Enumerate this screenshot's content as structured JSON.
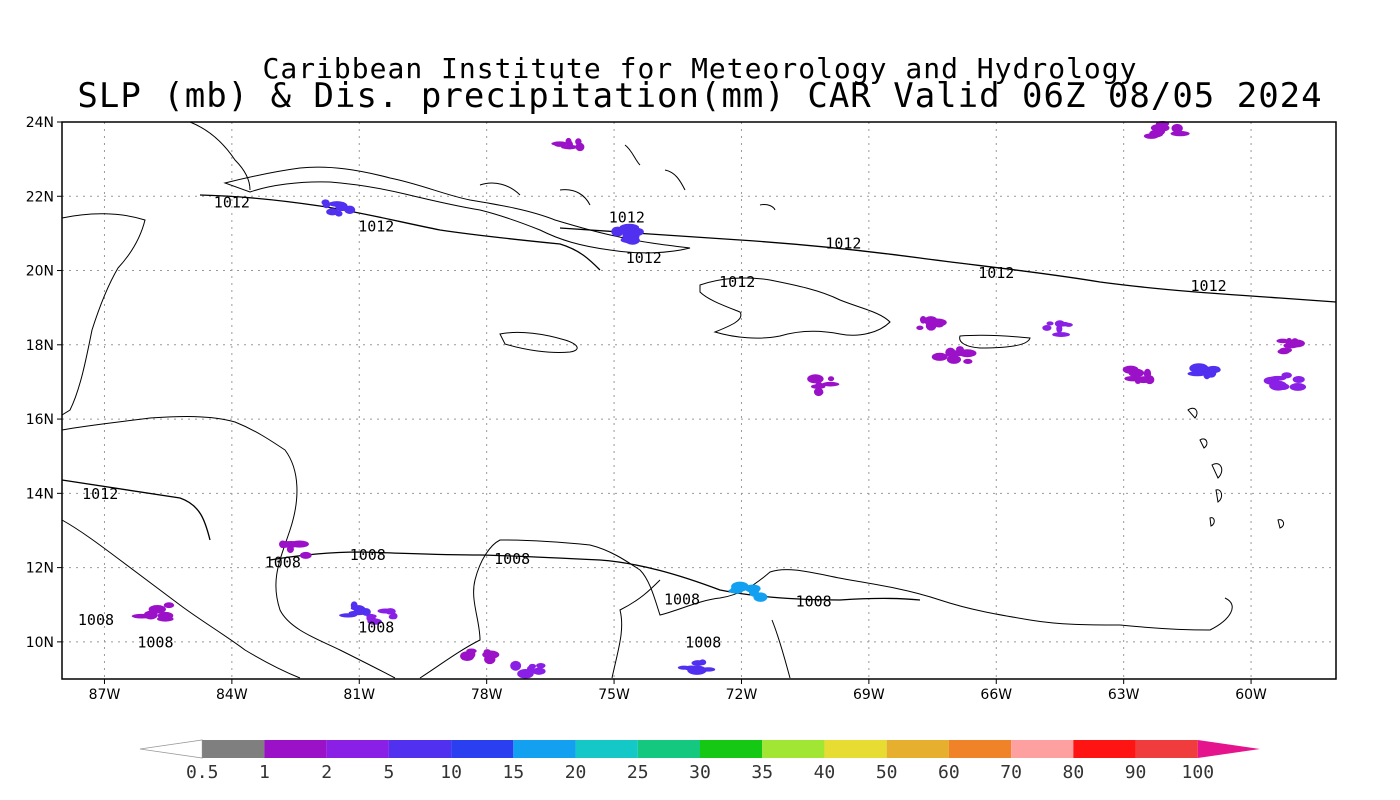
{
  "title": {
    "line1": "Caribbean Institute for Meteorology and Hydrology",
    "line2": "SLP (mb) & Dis. precipitation(mm) CAR Valid 06Z 08/05 2024"
  },
  "axes": {
    "lat_labels": [
      "24N",
      "22N",
      "20N",
      "18N",
      "16N",
      "14N",
      "12N",
      "10N"
    ],
    "lat_values": [
      24,
      22,
      20,
      18,
      16,
      14,
      12,
      10
    ],
    "lon_labels": [
      "87W",
      "84W",
      "81W",
      "78W",
      "75W",
      "72W",
      "69W",
      "66W",
      "63W",
      "60W"
    ],
    "lon_values": [
      -87,
      -84,
      -81,
      -78,
      -75,
      -72,
      -69,
      -66,
      -63,
      -60
    ],
    "lon_range": [
      -88.0,
      -58.0
    ],
    "lat_range": [
      9.0,
      24.0
    ],
    "grid": "dotted"
  },
  "isobars": [
    {
      "label": "1012",
      "lon": -84.0,
      "lat": 21.7
    },
    {
      "label": "1012",
      "lon": -80.6,
      "lat": 21.05
    },
    {
      "label": "1012",
      "lon": -74.7,
      "lat": 21.3
    },
    {
      "label": "1012",
      "lon": -74.3,
      "lat": 20.2
    },
    {
      "label": "1012",
      "lon": -72.1,
      "lat": 19.55
    },
    {
      "label": "1012",
      "lon": -69.6,
      "lat": 20.6
    },
    {
      "label": "1012",
      "lon": -66.0,
      "lat": 19.8
    },
    {
      "label": "1012",
      "lon": -61.0,
      "lat": 19.45
    },
    {
      "label": "1012",
      "lon": -87.1,
      "lat": 13.85
    },
    {
      "label": "1008",
      "lon": -82.8,
      "lat": 12.0
    },
    {
      "label": "1008",
      "lon": -80.8,
      "lat": 12.2
    },
    {
      "label": "1008",
      "lon": -77.4,
      "lat": 12.1
    },
    {
      "label": "1008",
      "lon": -73.4,
      "lat": 11.0
    },
    {
      "label": "1008",
      "lon": -70.3,
      "lat": 10.95
    },
    {
      "label": "1008",
      "lon": -87.2,
      "lat": 10.45
    },
    {
      "label": "1008",
      "lon": -85.8,
      "lat": 9.85
    },
    {
      "label": "1008",
      "lon": -72.9,
      "lat": 9.85
    },
    {
      "label": "1008",
      "lon": -80.6,
      "lat": 10.25
    }
  ],
  "colorbar": {
    "labels": [
      "0.5",
      "1",
      "2",
      "5",
      "10",
      "15",
      "20",
      "25",
      "30",
      "35",
      "40",
      "50",
      "60",
      "70",
      "80",
      "90",
      "100"
    ],
    "colors": [
      "#ffffff",
      "#7f7f7f",
      "#9b11c8",
      "#8a1fe6",
      "#5130f0",
      "#2a40f0",
      "#14a0f0",
      "#14c8c8",
      "#14c880",
      "#14c814",
      "#a0e632",
      "#e6dc32",
      "#e6af2d",
      "#f08228",
      "#ffa0a0",
      "#ff1414",
      "#f03c3c",
      "#e6148c"
    ]
  },
  "precip_clusters": [
    {
      "lon": -61.0,
      "lat": 17.2,
      "color": "#5130f0"
    },
    {
      "lon": -59.0,
      "lat": 18.0,
      "color": "#9b11c8"
    },
    {
      "lon": -59.2,
      "lat": 17.0,
      "color": "#8a1fe6"
    },
    {
      "lon": -62.5,
      "lat": 17.2,
      "color": "#9b11c8"
    },
    {
      "lon": -64.5,
      "lat": 18.4,
      "color": "#8a1fe6"
    },
    {
      "lon": -67.5,
      "lat": 18.6,
      "color": "#9b11c8"
    },
    {
      "lon": -74.6,
      "lat": 21.0,
      "color": "#5130f0"
    },
    {
      "lon": -80.5,
      "lat": 10.7,
      "color": "#8a1fe6"
    },
    {
      "lon": -81.0,
      "lat": 10.8,
      "color": "#5130f0"
    },
    {
      "lon": -78.2,
      "lat": 9.7,
      "color": "#9b11c8"
    },
    {
      "lon": -77.0,
      "lat": 9.3,
      "color": "#8a1fe6"
    },
    {
      "lon": -73.0,
      "lat": 9.3,
      "color": "#5130f0"
    },
    {
      "lon": -71.8,
      "lat": 11.3,
      "color": "#14a0f0"
    },
    {
      "lon": -81.5,
      "lat": 21.7,
      "color": "#5130f0"
    },
    {
      "lon": -76.0,
      "lat": 23.4,
      "color": "#9b11c8"
    },
    {
      "lon": -62.0,
      "lat": 23.8,
      "color": "#9b11c8"
    },
    {
      "lon": -70.0,
      "lat": 16.9,
      "color": "#9b11c8"
    },
    {
      "lon": -67.0,
      "lat": 17.7,
      "color": "#9b11c8"
    },
    {
      "lon": -85.8,
      "lat": 10.8,
      "color": "#9b11c8"
    },
    {
      "lon": -82.5,
      "lat": 12.5,
      "color": "#9b11c8"
    }
  ]
}
